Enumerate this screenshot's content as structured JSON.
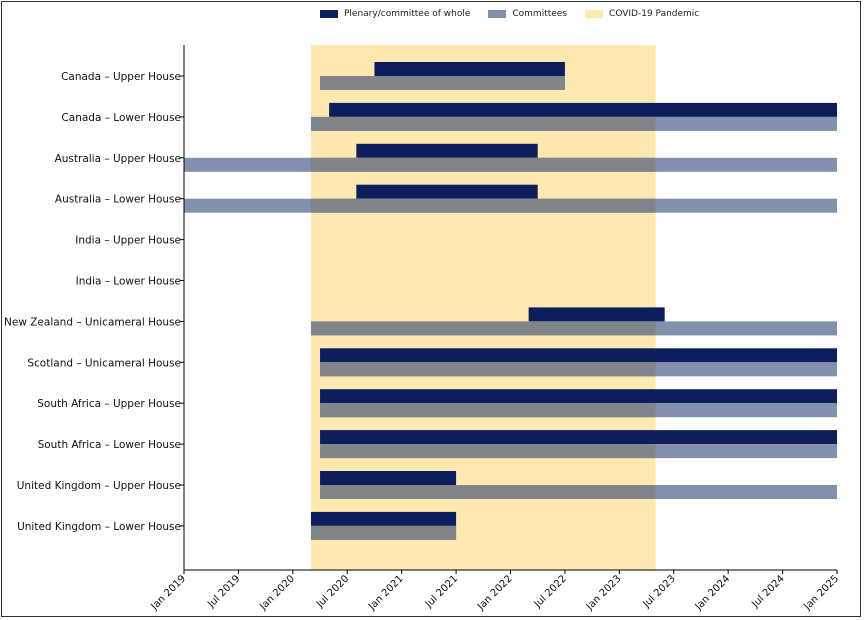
{
  "chart_data": {
    "type": "bar",
    "orientation": "horizontal-timeline",
    "x_ticks": [
      "Jan 2019",
      "Jul 2019",
      "Jan 2020",
      "Jul 2020",
      "Jan 2021",
      "Jul 2021",
      "Jan 2022",
      "Jul 2022",
      "Jan 2023",
      "Jul 2023",
      "Jan 2024",
      "Jul 2024",
      "Jan 2025"
    ],
    "x_range": [
      "2019-01",
      "2025-01"
    ],
    "legend": [
      {
        "name": "Plenary/committee of whole",
        "color": "#0c1f5c"
      },
      {
        "name": "Committees",
        "color": "#8190ad"
      },
      {
        "name": "COVID-19 Pandemic",
        "color": "#fde8b0"
      }
    ],
    "highlight_period": {
      "label": "COVID-19 Pandemic",
      "start": "2020-03",
      "end": "2023-05"
    },
    "categories": [
      "Canada – Upper House",
      "Canada – Lower House",
      "Australia – Upper House",
      "Australia – Lower House",
      "India – Upper House",
      "India – Lower House",
      "New Zealand – Unicameral House",
      "Scotland – Unicameral House",
      "South Africa – Upper House",
      "South Africa – Lower House",
      "United Kingdom – Upper House",
      "United Kingdom – Lower House"
    ],
    "series": [
      {
        "name": "Plenary/committee of whole",
        "intervals": [
          [
            "2020-10",
            "2022-07"
          ],
          [
            "2020-05",
            "2025-01"
          ],
          [
            "2020-08",
            "2022-04"
          ],
          [
            "2020-08",
            "2022-04"
          ],
          null,
          null,
          [
            "2022-03",
            "2023-06"
          ],
          [
            "2020-04",
            "2025-01"
          ],
          [
            "2020-04",
            "2025-01"
          ],
          [
            "2020-04",
            "2025-01"
          ],
          [
            "2020-04",
            "2021-07"
          ],
          [
            "2020-03",
            "2021-07"
          ]
        ]
      },
      {
        "name": "Committees",
        "intervals": [
          [
            "2020-04",
            "2022-07"
          ],
          [
            "2020-03",
            "2025-01"
          ],
          [
            "2019-01",
            "2025-01"
          ],
          [
            "2019-01",
            "2025-01"
          ],
          null,
          null,
          [
            "2020-03",
            "2025-01"
          ],
          [
            "2020-04",
            "2025-01"
          ],
          [
            "2020-04",
            "2025-01"
          ],
          [
            "2020-04",
            "2025-01"
          ],
          [
            "2020-04",
            "2025-01"
          ],
          [
            "2020-03",
            "2021-07"
          ]
        ]
      }
    ]
  }
}
